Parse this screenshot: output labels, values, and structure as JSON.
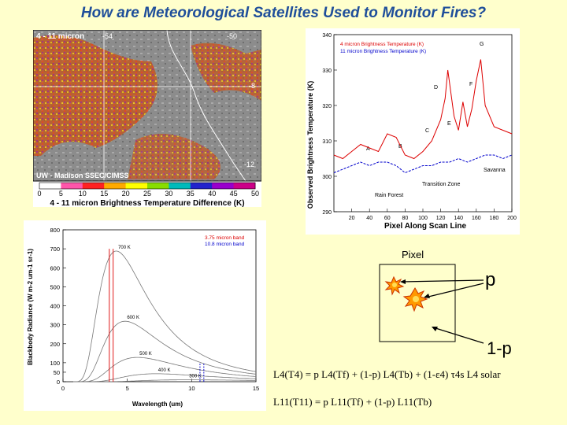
{
  "title": "How are Meteorological Satellites Used to Monitor Fires?",
  "satellite_image": {
    "band_label": "4 - 11 micron",
    "lon_left": "-54",
    "lon_right": "-50",
    "lat_mid": "-8",
    "lat_bottom": "-12",
    "credit": "UW - Madison SSEC/CIMSS"
  },
  "colorbar": {
    "ticks": [
      "0",
      "5",
      "10",
      "15",
      "20",
      "25",
      "30",
      "35",
      "40",
      "45",
      "50"
    ],
    "caption": "4 - 11 micron Brightness Temperature Difference (K)",
    "colors": [
      "#ffffff",
      "#ff55aa",
      "#ff2222",
      "#ffaa00",
      "#ffff00",
      "#88dd00",
      "#00bbbb",
      "#2222cc",
      "#9900cc",
      "#cc0088"
    ]
  },
  "chart_data": [
    {
      "type": "line",
      "title": "",
      "xlabel": "Pixel Along Scan Line",
      "ylabel": "Observed Brightness Temperature (K)",
      "xlim": [
        0,
        200
      ],
      "ylim": [
        290,
        340
      ],
      "xticks": [
        "20",
        "40",
        "60",
        "80",
        "100",
        "120",
        "140",
        "160",
        "180",
        "200"
      ],
      "yticks": [
        "290",
        "300",
        "310",
        "320",
        "330",
        "340"
      ],
      "series": [
        {
          "name": "4 micron Brightness Temperature (K)",
          "color": "#dd0000",
          "x": [
            0,
            10,
            20,
            30,
            40,
            50,
            60,
            70,
            80,
            90,
            100,
            110,
            120,
            125,
            128,
            135,
            140,
            145,
            150,
            155,
            160,
            165,
            170,
            180,
            190,
            200
          ],
          "y": [
            306,
            305,
            307,
            309,
            308,
            307,
            312,
            311,
            306,
            305,
            307,
            310,
            316,
            322,
            330,
            317,
            313,
            321,
            314,
            319,
            327,
            333,
            320,
            314,
            313,
            312
          ]
        },
        {
          "name": "11 micron Brightness Temperature (K)",
          "color": "#0000cc",
          "x": [
            0,
            10,
            20,
            30,
            40,
            50,
            60,
            70,
            80,
            90,
            100,
            110,
            120,
            130,
            140,
            150,
            160,
            170,
            180,
            190,
            200
          ],
          "y": [
            301,
            302,
            303,
            304,
            303,
            304,
            304,
            303,
            301,
            302,
            303,
            303,
            304,
            304,
            305,
            304,
            305,
            306,
            306,
            305,
            306
          ]
        }
      ],
      "annotations": [
        "A",
        "B",
        "C",
        "D",
        "E",
        "F",
        "G"
      ],
      "region_labels": [
        "Savanna",
        "Transition Zone",
        "Rain Forest"
      ]
    },
    {
      "type": "line",
      "xlabel": "Wavelength (um)",
      "ylabel": "Blackbody Radiance (W m-2 um-1 sr-1)",
      "xlim": [
        0,
        15
      ],
      "ylim": [
        0,
        800
      ],
      "xticks": [
        "0",
        "5",
        "10",
        "15"
      ],
      "yticks": [
        "0",
        "50",
        "100",
        "200",
        "300",
        "400",
        "500",
        "600",
        "700",
        "800"
      ],
      "legend": [
        "3.75 micron band",
        "10.8 micron band"
      ],
      "legend_colors": [
        "#dd0000",
        "#0000cc"
      ],
      "band_centers_um": [
        3.75,
        10.8
      ],
      "series": [
        {
          "name": "700 K",
          "temperature_k": 700
        },
        {
          "name": "600 K",
          "temperature_k": 600
        },
        {
          "name": "500 K",
          "temperature_k": 500
        },
        {
          "name": "400 K",
          "temperature_k": 400
        },
        {
          "name": "300 K",
          "temperature_k": 300
        }
      ]
    }
  ],
  "pixel_diagram": {
    "pixel_label": "Pixel",
    "p_label": "p",
    "one_minus_p_label": "1-p"
  },
  "equations": {
    "eq1": "L4(T4) = p L4(Tf) + (1-p) L4(Tb) + (1-ε4) τ4s L4 solar",
    "eq2": "L11(T11) = p L11(Tf) + (1-p) L11(Tb)"
  }
}
